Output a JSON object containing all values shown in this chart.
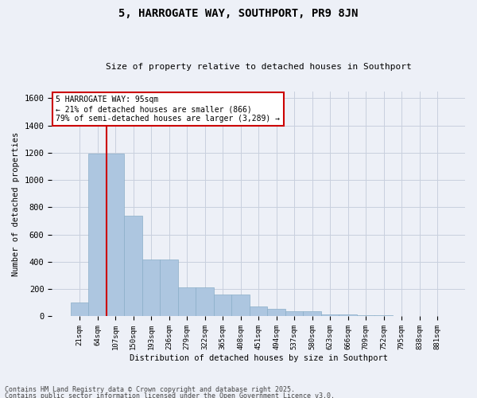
{
  "title": "5, HARROGATE WAY, SOUTHPORT, PR9 8JN",
  "subtitle": "Size of property relative to detached houses in Southport",
  "xlabel": "Distribution of detached houses by size in Southport",
  "ylabel": "Number of detached properties",
  "categories": [
    "21sqm",
    "64sqm",
    "107sqm",
    "150sqm",
    "193sqm",
    "236sqm",
    "279sqm",
    "322sqm",
    "365sqm",
    "408sqm",
    "451sqm",
    "494sqm",
    "537sqm",
    "580sqm",
    "623sqm",
    "666sqm",
    "709sqm",
    "752sqm",
    "795sqm",
    "838sqm",
    "881sqm"
  ],
  "values": [
    100,
    1195,
    1195,
    740,
    415,
    415,
    215,
    215,
    160,
    160,
    75,
    55,
    40,
    40,
    15,
    15,
    10,
    10,
    5,
    5,
    5
  ],
  "bar_color": "#adc6e0",
  "bar_edge_color": "#8aaec8",
  "grid_color": "#c8d0de",
  "bg_color": "#edf0f7",
  "vline_color": "#cc0000",
  "annotation_text": "5 HARROGATE WAY: 95sqm\n← 21% of detached houses are smaller (866)\n79% of semi-detached houses are larger (3,289) →",
  "annotation_box_color": "#cc0000",
  "footer_line1": "Contains HM Land Registry data © Crown copyright and database right 2025.",
  "footer_line2": "Contains public sector information licensed under the Open Government Licence v3.0.",
  "ylim": [
    0,
    1650
  ],
  "yticks": [
    0,
    200,
    400,
    600,
    800,
    1000,
    1200,
    1400,
    1600
  ]
}
